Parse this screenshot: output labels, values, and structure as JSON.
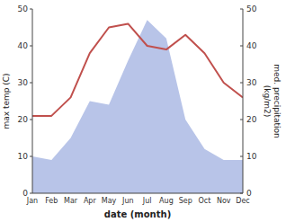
{
  "chart_data": {
    "type": "line",
    "xlabel": "date (month)",
    "ylabel": "max temp (C)",
    "y2label": "med. precipitation\n(kg/m2)",
    "categories": [
      "Jan",
      "Feb",
      "Mar",
      "Apr",
      "May",
      "Jun",
      "Jul",
      "Aug",
      "Sep",
      "Oct",
      "Nov",
      "Dec"
    ],
    "series": [
      {
        "type": "area",
        "axis": "y2",
        "color": "#b8c4e8",
        "values": [
          10,
          9,
          15,
          25,
          24,
          36,
          47,
          42,
          20,
          12,
          9,
          9
        ]
      },
      {
        "type": "line",
        "color": "#c0504d",
        "values": [
          21,
          21,
          26,
          38,
          45,
          46,
          40,
          39,
          43,
          38,
          30,
          26
        ]
      }
    ],
    "ylim": [
      0,
      50
    ],
    "yticks": [
      0,
      10,
      20,
      30,
      40,
      50
    ],
    "y2lim": [
      0,
      50
    ],
    "y2ticks": [
      0,
      10,
      20,
      30,
      40,
      50
    ],
    "grid": false
  }
}
